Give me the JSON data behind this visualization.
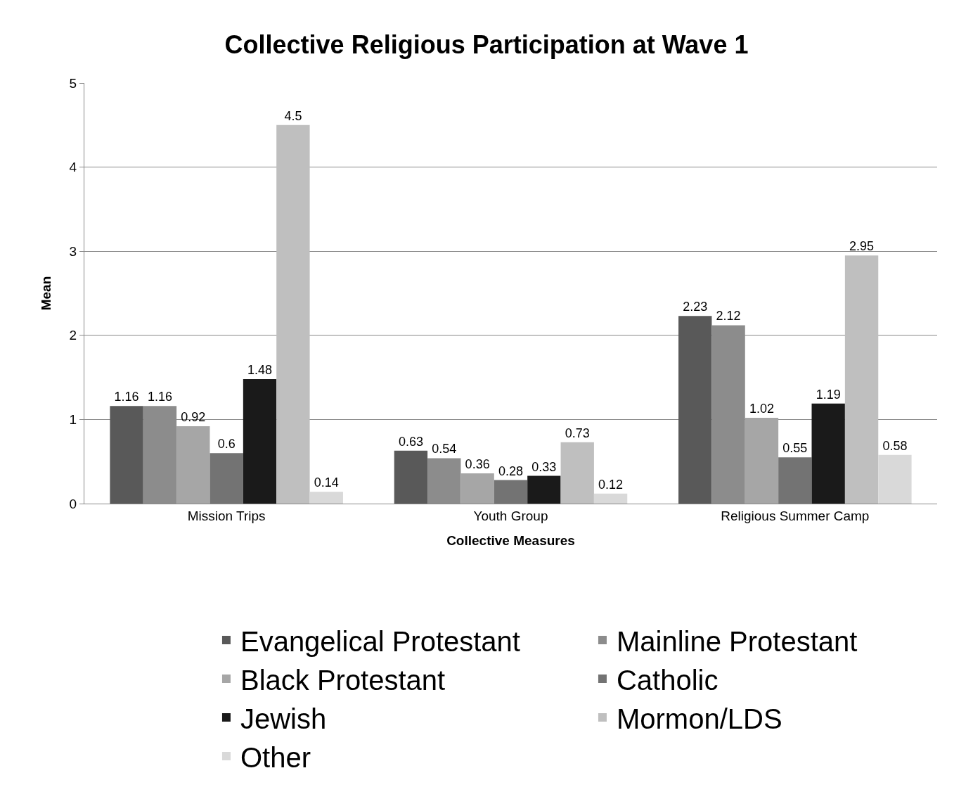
{
  "chart_data": {
    "type": "bar",
    "title": "Collective Religious Participation at Wave 1",
    "xlabel": "Collective Measures",
    "ylabel": "Mean",
    "categories": [
      "Mission Trips",
      "Youth Group",
      "Religious Summer Camp"
    ],
    "series": [
      {
        "name": "Evangelical Protestant",
        "color": "#595959",
        "values": [
          1.16,
          0.63,
          2.23
        ]
      },
      {
        "name": "Mainline Protestant",
        "color": "#8c8c8c",
        "values": [
          1.16,
          0.54,
          2.12
        ]
      },
      {
        "name": "Black Protestant",
        "color": "#a6a6a6",
        "values": [
          0.92,
          0.36,
          1.02
        ]
      },
      {
        "name": "Catholic",
        "color": "#737373",
        "values": [
          0.6,
          0.28,
          0.55
        ]
      },
      {
        "name": "Jewish",
        "color": "#1a1a1a",
        "values": [
          1.48,
          0.33,
          1.19
        ]
      },
      {
        "name": "Mormon/LDS",
        "color": "#bfbfbf",
        "values": [
          4.5,
          0.73,
          2.95
        ]
      },
      {
        "name": "Other",
        "color": "#d9d9d9",
        "values": [
          0.14,
          0.12,
          0.58
        ]
      }
    ],
    "ylim": [
      0,
      5
    ],
    "yticks": [
      0,
      1,
      2,
      3,
      4,
      5
    ],
    "grid": "y",
    "legend": "bottom",
    "data_labels": true
  }
}
